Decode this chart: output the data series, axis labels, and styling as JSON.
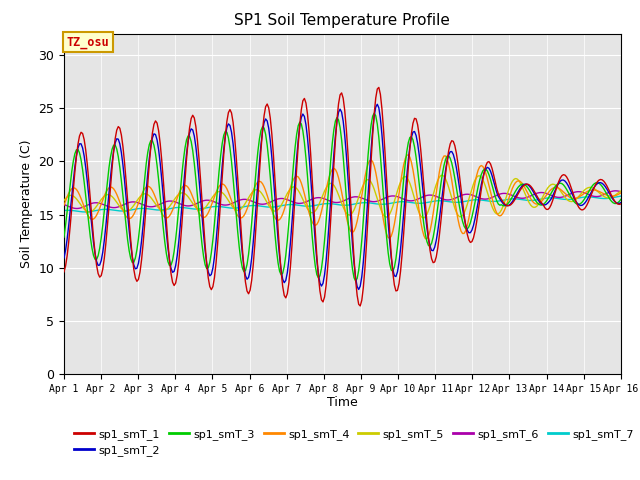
{
  "title": "SP1 Soil Temperature Profile",
  "xlabel": "Time",
  "ylabel": "Soil Temperature (C)",
  "ylim": [
    0,
    32
  ],
  "yticks": [
    0,
    5,
    10,
    15,
    20,
    25,
    30
  ],
  "annotation": "TZ_osu",
  "annotation_color": "#cc0000",
  "annotation_bg": "#ffffcc",
  "annotation_border": "#cc9900",
  "background_color": "#e5e5e5",
  "x_labels": [
    "Apr 1",
    "Apr 2",
    "Apr 3",
    "Apr 4",
    "Apr 5",
    "Apr 6",
    "Apr 7",
    "Apr 8",
    "Apr 9",
    "Apr 10",
    "Apr 11",
    "Apr 12",
    "Apr 13",
    "Apr 14",
    "Apr 15",
    "Apr 16"
  ],
  "series_colors": {
    "sp1_smT_1": "#cc0000",
    "sp1_smT_2": "#0000cc",
    "sp1_smT_3": "#00cc00",
    "sp1_smT_4": "#ff8800",
    "sp1_smT_5": "#cccc00",
    "sp1_smT_6": "#aa00aa",
    "sp1_smT_7": "#00cccc"
  },
  "n_days": 15,
  "figsize": [
    6.4,
    4.8
  ],
  "dpi": 100
}
